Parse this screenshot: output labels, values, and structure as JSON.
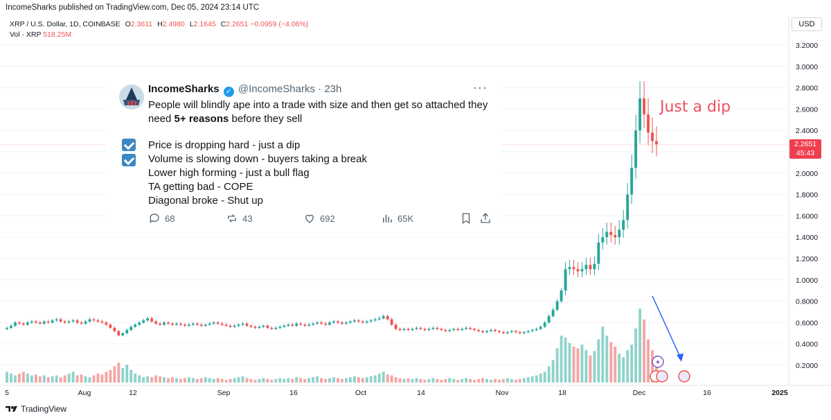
{
  "header": {
    "published": "IncomeSharks published on TradingView.com, Dec 05, 2024 23:14 UTC"
  },
  "legend": {
    "symbol": "XRP / U.S. Dollar, 1D, COINBASE",
    "o_label": "O",
    "o": "2.3611",
    "h_label": "H",
    "h": "2.4980",
    "l_label": "L",
    "l": "2.1645",
    "c_label": "C",
    "c": "2.2651",
    "change": "−0.0959 (−4.06%)",
    "vol_label": "Vol · XRP",
    "vol": "518.25M"
  },
  "currency": "USD",
  "price_tag": {
    "price": "2.2651",
    "countdown": "45:43"
  },
  "annotation": "Just a dip",
  "tweet": {
    "name": "IncomeSharks",
    "handle": "@IncomeSharks · 23h",
    "more": "···",
    "line1": "People will blindly ape into a trade with size and then get so attached they",
    "line2_pre": "need ",
    "line2_bold": "5+ reasons",
    "line2_post": " before they sell",
    "items": [
      "Price is dropping hard - just a dip",
      "Volume is slowing down - buyers taking a break",
      "Lower high forming - just a bull flag",
      "TA getting bad - COPE",
      "Diagonal broke - Shut up"
    ],
    "replies": "68",
    "reposts": "43",
    "likes": "692",
    "views": "65K",
    "icons": [
      "reply-icon",
      "repost-icon",
      "like-icon",
      "views-icon",
      "bookmark-icon",
      "share-icon"
    ]
  },
  "footer": {
    "brand": "TradingView"
  },
  "colors": {
    "up": "#26a69a",
    "down": "#ef5350",
    "vol_up": "#8fd3cb",
    "vol_down": "#f4a6a4",
    "accent": "#2962ff"
  },
  "chart_data": {
    "type": "candlestick",
    "title": "XRP / U.S. Dollar, 1D, COINBASE",
    "y_axis": {
      "ticks": [
        "3.2000",
        "3.0000",
        "2.8000",
        "2.6000",
        "2.4000",
        "2.2000",
        "2.0000",
        "1.8000",
        "1.6000",
        "1.4000",
        "1.2000",
        "1.0000",
        "0.8000",
        "0.6000",
        "0.4000",
        "0.2000"
      ],
      "range": [
        0.05,
        3.3
      ]
    },
    "x_axis": {
      "labels": [
        {
          "text": "5",
          "bold": false
        },
        {
          "text": "Aug",
          "bold": false
        },
        {
          "text": "12",
          "bold": false
        },
        {
          "text": "Sep",
          "bold": false
        },
        {
          "text": "16",
          "bold": false
        },
        {
          "text": "Oct",
          "bold": false
        },
        {
          "text": "14",
          "bold": false
        },
        {
          "text": "Nov",
          "bold": false
        },
        {
          "text": "18",
          "bold": false
        },
        {
          "text": "Dec",
          "bold": false
        },
        {
          "text": "16",
          "bold": false
        },
        {
          "text": "2025",
          "bold": true
        }
      ]
    },
    "last_price": 2.2651,
    "series_close": [
      0.55,
      0.57,
      0.6,
      0.59,
      0.58,
      0.6,
      0.61,
      0.6,
      0.59,
      0.61,
      0.6,
      0.62,
      0.63,
      0.61,
      0.6,
      0.61,
      0.62,
      0.6,
      0.59,
      0.61,
      0.63,
      0.62,
      0.61,
      0.6,
      0.58,
      0.55,
      0.52,
      0.48,
      0.5,
      0.53,
      0.56,
      0.58,
      0.6,
      0.62,
      0.64,
      0.61,
      0.59,
      0.58,
      0.6,
      0.59,
      0.58,
      0.59,
      0.58,
      0.57,
      0.58,
      0.59,
      0.58,
      0.57,
      0.58,
      0.59,
      0.6,
      0.59,
      0.58,
      0.57,
      0.56,
      0.57,
      0.58,
      0.59,
      0.57,
      0.56,
      0.55,
      0.56,
      0.57,
      0.55,
      0.54,
      0.55,
      0.56,
      0.57,
      0.58,
      0.57,
      0.59,
      0.58,
      0.57,
      0.58,
      0.59,
      0.6,
      0.59,
      0.58,
      0.6,
      0.61,
      0.6,
      0.59,
      0.6,
      0.61,
      0.62,
      0.61,
      0.6,
      0.61,
      0.62,
      0.63,
      0.64,
      0.66,
      0.63,
      0.58,
      0.54,
      0.53,
      0.54,
      0.53,
      0.54,
      0.55,
      0.54,
      0.53,
      0.54,
      0.55,
      0.54,
      0.53,
      0.52,
      0.53,
      0.54,
      0.53,
      0.54,
      0.55,
      0.54,
      0.53,
      0.52,
      0.51,
      0.52,
      0.53,
      0.52,
      0.51,
      0.5,
      0.51,
      0.52,
      0.51,
      0.5,
      0.51,
      0.52,
      0.53,
      0.54,
      0.56,
      0.6,
      0.66,
      0.72,
      0.8,
      0.9,
      1.1,
      1.12,
      1.1,
      1.08,
      1.1,
      1.14,
      1.1,
      1.15,
      1.35,
      1.4,
      1.45,
      1.42,
      1.4,
      1.47,
      1.56,
      1.8,
      2.05,
      2.4,
      2.7,
      2.55,
      2.38,
      2.3,
      2.27
    ],
    "volume": [
      0.12,
      0.1,
      0.08,
      0.1,
      0.12,
      0.1,
      0.08,
      0.09,
      0.07,
      0.08,
      0.06,
      0.07,
      0.08,
      0.06,
      0.08,
      0.1,
      0.12,
      0.08,
      0.09,
      0.07,
      0.06,
      0.08,
      0.1,
      0.09,
      0.12,
      0.14,
      0.18,
      0.22,
      0.16,
      0.2,
      0.14,
      0.1,
      0.08,
      0.06,
      0.07,
      0.06,
      0.08,
      0.07,
      0.06,
      0.05,
      0.06,
      0.05,
      0.04,
      0.05,
      0.06,
      0.05,
      0.04,
      0.05,
      0.06,
      0.05,
      0.04,
      0.05,
      0.04,
      0.03,
      0.04,
      0.05,
      0.06,
      0.07,
      0.05,
      0.04,
      0.03,
      0.04,
      0.05,
      0.04,
      0.03,
      0.04,
      0.05,
      0.04,
      0.05,
      0.04,
      0.06,
      0.05,
      0.04,
      0.05,
      0.06,
      0.07,
      0.05,
      0.04,
      0.05,
      0.06,
      0.05,
      0.04,
      0.05,
      0.06,
      0.07,
      0.06,
      0.05,
      0.06,
      0.07,
      0.08,
      0.1,
      0.12,
      0.09,
      0.08,
      0.06,
      0.05,
      0.04,
      0.05,
      0.04,
      0.05,
      0.04,
      0.03,
      0.04,
      0.05,
      0.04,
      0.03,
      0.04,
      0.05,
      0.04,
      0.03,
      0.04,
      0.05,
      0.04,
      0.03,
      0.04,
      0.05,
      0.04,
      0.03,
      0.04,
      0.03,
      0.04,
      0.05,
      0.04,
      0.03,
      0.04,
      0.05,
      0.06,
      0.07,
      0.08,
      0.1,
      0.12,
      0.18,
      0.25,
      0.38,
      0.52,
      0.5,
      0.44,
      0.4,
      0.38,
      0.42,
      0.36,
      0.3,
      0.35,
      0.48,
      0.62,
      0.52,
      0.45,
      0.4,
      0.32,
      0.28,
      0.36,
      0.42,
      0.6,
      0.82,
      0.7,
      0.48,
      0.36,
      0.3
    ]
  }
}
